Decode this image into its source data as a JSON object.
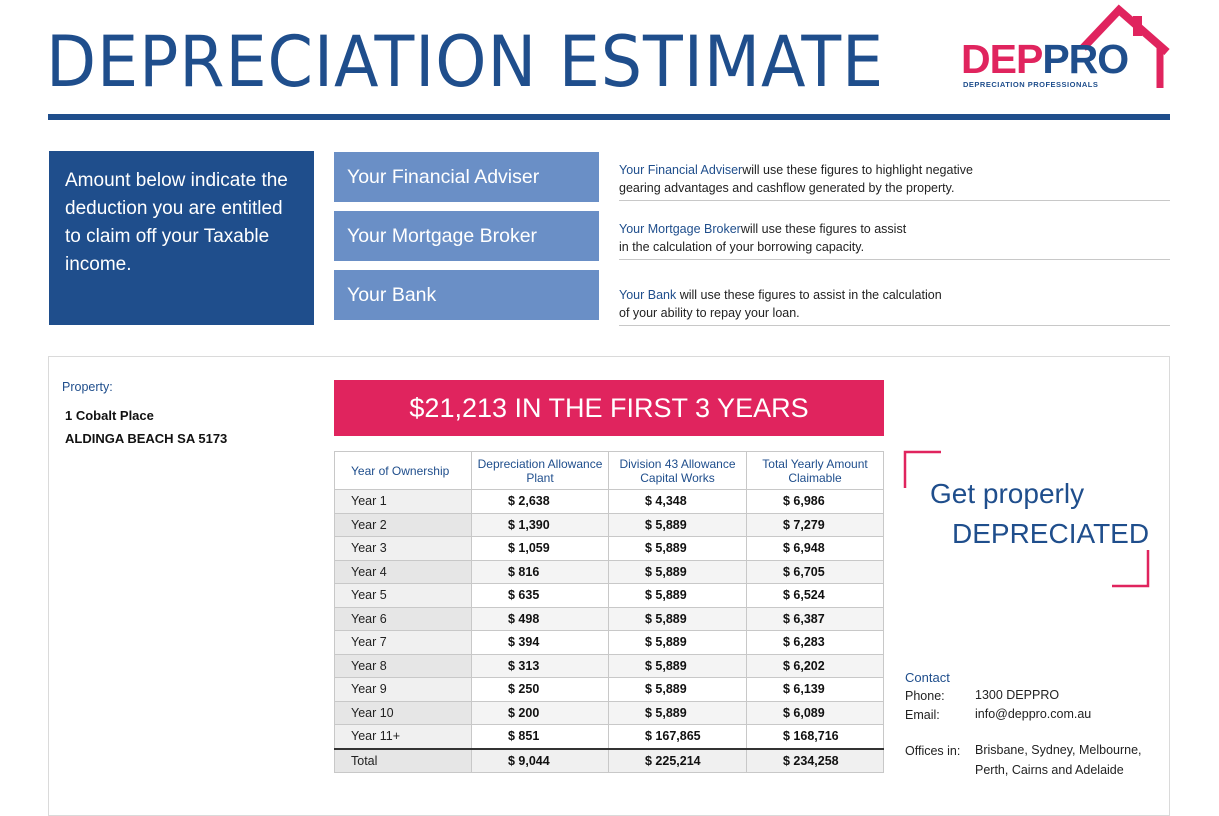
{
  "header": {
    "title": "DEPRECIATION ESTIMATE",
    "logo_dep": "DEP",
    "logo_pro": "PRO",
    "logo_tagline": "DEPRECIATION PROFESSIONALS",
    "accent_blue": "#1f4e8c",
    "accent_pink": "#e0245e"
  },
  "intro": {
    "text": "Amount below indicate the deduction you are entitled to claim off your Taxable income."
  },
  "roles": [
    {
      "label": "Your Financial Adviser",
      "name": "Your Financial Adviser",
      "desc_1": "will use these figures to highlight negative",
      "desc_2": "gearing advantages and cashflow generated by the property."
    },
    {
      "label": "Your Mortgage Broker",
      "name": "Your Mortgage Broker",
      "desc_1": "will use these figures to assist",
      "desc_2": "in the calculation of your borrowing capacity."
    },
    {
      "label": "Your Bank",
      "name": "Your Bank",
      "desc_1": " will use these figures to assist in the calculation",
      "desc_2": "of your ability to repay your loan."
    }
  ],
  "property": {
    "label": "Property:",
    "line1": "1 Cobalt Place",
    "line2": "ALDINGA BEACH SA 5173"
  },
  "banner": "$21,213 IN THE FIRST 3 YEARS",
  "table": {
    "headers": [
      "Year of Ownership",
      "Depreciation Allowance Plant",
      "Division 43 Allowance Capital Works",
      "Total Yearly Amount Claimable"
    ],
    "rows": [
      [
        "Year 1",
        "$ 2,638",
        "$ 4,348",
        "$ 6,986"
      ],
      [
        "Year 2",
        "$ 1,390",
        "$ 5,889",
        "$ 7,279"
      ],
      [
        "Year 3",
        "$ 1,059",
        "$ 5,889",
        "$ 6,948"
      ],
      [
        "Year 4",
        "$ 816",
        "$ 5,889",
        "$ 6,705"
      ],
      [
        "Year 5",
        "$ 635",
        "$ 5,889",
        "$ 6,524"
      ],
      [
        "Year 6",
        "$ 498",
        "$ 5,889",
        "$ 6,387"
      ],
      [
        "Year 7",
        "$ 394",
        "$ 5,889",
        "$ 6,283"
      ],
      [
        "Year 8",
        "$ 313",
        "$ 5,889",
        "$ 6,202"
      ],
      [
        "Year 9",
        "$ 250",
        "$ 5,889",
        "$ 6,139"
      ],
      [
        "Year 10",
        "$ 200",
        "$ 5,889",
        "$ 6,089"
      ],
      [
        "Year 11+",
        "$ 851",
        "$ 167,865",
        "$ 168,716"
      ]
    ],
    "total": [
      "Total",
      "$ 9,044",
      "$ 225,214",
      "$ 234,258"
    ]
  },
  "tagline": {
    "line1": "Get properly",
    "line2": "DEPRECIATED"
  },
  "contact": {
    "label": "Contact",
    "phone_label": "Phone:",
    "phone": "1300 DEPPRO",
    "email_label": "Email:",
    "email": "info@deppro.com.au",
    "offices_label": "Offices in:",
    "offices_1": "Brisbane, Sydney, Melbourne,",
    "offices_2": "Perth, Cairns and Adelaide"
  }
}
